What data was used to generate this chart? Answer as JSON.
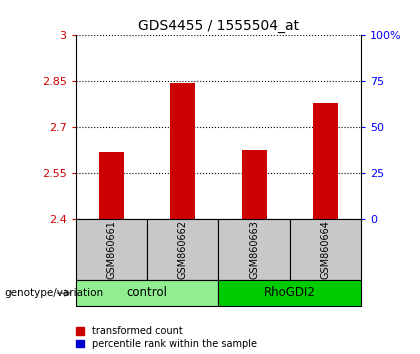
{
  "title": "GDS4455 / 1555504_at",
  "samples": [
    "GSM860661",
    "GSM860662",
    "GSM860663",
    "GSM860664"
  ],
  "red_values": [
    2.62,
    2.845,
    2.625,
    2.78
  ],
  "blue_values": [
    2.402,
    2.403,
    2.402,
    2.403
  ],
  "ylim_left": [
    2.4,
    3.0
  ],
  "ylim_right": [
    0,
    100
  ],
  "yticks_left": [
    2.4,
    2.55,
    2.7,
    2.85,
    3.0
  ],
  "ytick_labels_left": [
    "2.4",
    "2.55",
    "2.7",
    "2.85",
    "3"
  ],
  "yticks_right": [
    0,
    25,
    50,
    75,
    100
  ],
  "ytick_labels_right": [
    "0",
    "25",
    "50",
    "75",
    "100%"
  ],
  "groups": [
    {
      "label": "control",
      "samples": [
        0,
        1
      ],
      "color": "#90EE90"
    },
    {
      "label": "RhoGDI2",
      "samples": [
        2,
        3
      ],
      "color": "#00CC00"
    }
  ],
  "bar_width": 0.35,
  "red_color": "#CC0000",
  "blue_color": "#0000CC",
  "legend_red": "transformed count",
  "legend_blue": "percentile rank within the sample",
  "xlabel": "genotype/variation",
  "sample_box_color": "#C8C8C8",
  "title_fontsize": 10,
  "tick_fontsize": 8,
  "label_fontsize": 8.5
}
